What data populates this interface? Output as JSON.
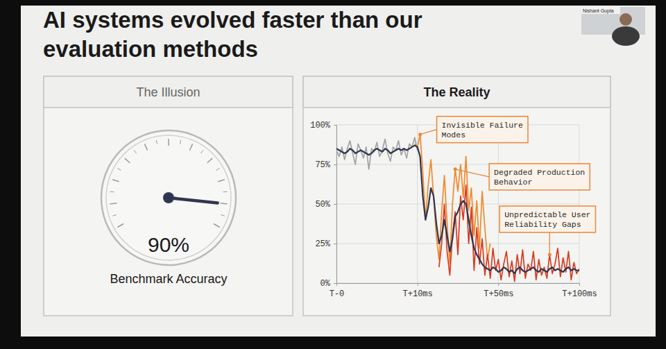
{
  "slide_title": "AI systems evolved faster than our evaluation methods",
  "speaker": "Nishant Gupta",
  "chart_data": [
    {
      "type": "gauge",
      "title": "The Illusion",
      "values": [
        90
      ],
      "value_labels": [
        "90%"
      ],
      "categories": [
        "Benchmark Accuracy"
      ],
      "ylim": [
        0,
        100
      ],
      "yticks": [
        0,
        5,
        10,
        15,
        20,
        25,
        30,
        35,
        40,
        45,
        50,
        55,
        60,
        65,
        70,
        75,
        80,
        85,
        90,
        95,
        100
      ],
      "tick_labels": false,
      "data_labels": true,
      "color": "#2f3650"
    },
    {
      "type": "line",
      "title": "The Reality",
      "x": [
        0,
        1,
        2,
        3,
        4,
        5,
        6,
        7,
        8,
        9,
        10,
        11,
        12,
        13,
        14,
        15,
        16,
        17,
        18,
        19,
        20,
        21,
        22,
        23,
        24,
        25,
        26,
        27,
        28,
        29,
        30,
        31,
        32,
        33,
        34,
        35,
        36,
        37,
        38,
        39,
        40,
        41,
        42,
        43,
        44,
        45,
        46,
        47,
        48,
        49,
        50,
        51,
        52,
        53,
        54,
        55,
        56,
        57,
        58,
        59,
        60,
        61,
        62,
        63,
        64,
        65,
        66,
        67,
        68,
        69,
        70,
        71,
        72,
        73,
        74,
        75,
        76,
        77,
        78,
        79,
        80,
        81,
        82,
        83,
        84,
        85,
        86,
        87,
        88,
        89,
        90
      ],
      "xlim": [
        0,
        90
      ],
      "xticks": [
        {
          "value": 0,
          "label": "T-0"
        },
        {
          "value": 30,
          "label": "T+10ms"
        },
        {
          "value": 60,
          "label": "T+50ms"
        },
        {
          "value": 90,
          "label": "T+100ms"
        }
      ],
      "ylim": [
        0,
        100
      ],
      "yticks": [
        {
          "value": 0,
          "label": "0%"
        },
        {
          "value": 25,
          "label": "25%"
        },
        {
          "value": 50,
          "label": "50%"
        },
        {
          "value": 75,
          "label": "75%"
        },
        {
          "value": 100,
          "label": "100%"
        }
      ],
      "grid": true,
      "series": [
        {
          "color": "#a3a3a3",
          "values": [
            84,
            80,
            86,
            78,
            85,
            90,
            82,
            75,
            88,
            84,
            79,
            86,
            72,
            85,
            83,
            89,
            80,
            84,
            91,
            82,
            77,
            86,
            84,
            90,
            81,
            85,
            79,
            88,
            86,
            92,
            84,
            null,
            null,
            null,
            null,
            null,
            null,
            null,
            null,
            null,
            null,
            null,
            null,
            null,
            null,
            null,
            null,
            null,
            null,
            null,
            null,
            null,
            null,
            null,
            null,
            null,
            null,
            null,
            null,
            null,
            null,
            null,
            null,
            null,
            null,
            null,
            null,
            null,
            null,
            null,
            null,
            null,
            null,
            null,
            null,
            null,
            null,
            null,
            null,
            null,
            null,
            null,
            null,
            null,
            null,
            null,
            null,
            null,
            null,
            null,
            null
          ]
        },
        {
          "color": "#f0892a",
          "values": [
            null,
            null,
            null,
            null,
            null,
            null,
            null,
            null,
            null,
            null,
            null,
            null,
            null,
            null,
            null,
            null,
            null,
            null,
            null,
            null,
            null,
            null,
            null,
            null,
            null,
            null,
            null,
            null,
            null,
            88,
            86,
            94,
            70,
            40,
            62,
            78,
            55,
            30,
            15,
            45,
            68,
            38,
            12,
            50,
            72,
            58,
            75,
            54,
            80,
            46,
            60,
            30,
            52,
            22,
            58,
            35,
            15,
            25,
            null,
            null,
            null,
            null,
            null,
            null,
            null,
            null,
            null,
            null,
            null,
            null,
            null,
            null,
            null,
            null,
            null,
            null,
            null,
            null,
            null,
            null,
            null,
            null,
            null,
            null,
            null,
            null,
            null,
            null,
            null,
            null,
            null
          ]
        },
        {
          "color": "#d93a1f",
          "values": [
            null,
            null,
            null,
            null,
            null,
            null,
            null,
            null,
            null,
            null,
            null,
            null,
            null,
            null,
            null,
            null,
            null,
            null,
            null,
            null,
            null,
            null,
            null,
            null,
            null,
            null,
            null,
            null,
            null,
            null,
            null,
            null,
            null,
            null,
            null,
            null,
            null,
            null,
            10,
            25,
            50,
            20,
            5,
            30,
            45,
            18,
            55,
            40,
            62,
            25,
            48,
            8,
            35,
            12,
            28,
            5,
            18,
            3,
            22,
            8,
            15,
            2,
            12,
            20,
            4,
            14,
            1,
            18,
            6,
            21,
            3,
            12,
            8,
            20,
            2,
            15,
            5,
            10,
            3,
            18,
            6,
            12,
            22,
            4,
            16,
            7,
            20,
            2,
            13,
            6,
            9
          ]
        },
        {
          "color": "#2f3650",
          "values": [
            85,
            84,
            83,
            82,
            83,
            85,
            84,
            82,
            83,
            84,
            83,
            82,
            81,
            82,
            84,
            85,
            84,
            83,
            85,
            84,
            82,
            83,
            84,
            85,
            84,
            85,
            84,
            85,
            86,
            87,
            86,
            80,
            55,
            40,
            48,
            60,
            55,
            38,
            25,
            30,
            40,
            30,
            20,
            28,
            42,
            45,
            50,
            52,
            50,
            40,
            30,
            22,
            18,
            15,
            12,
            10,
            9,
            8,
            10,
            9,
            7,
            8,
            10,
            9,
            7,
            8,
            6,
            9,
            10,
            8,
            7,
            8,
            9,
            10,
            8,
            7,
            9,
            8,
            7,
            9,
            10,
            8,
            9,
            8,
            7,
            9,
            10,
            8,
            9,
            8,
            8
          ]
        }
      ],
      "annotations": [
        {
          "text": "Invisible Failure Modes",
          "x": 31,
          "y": 94
        },
        {
          "text": "Degraded Production Behavior",
          "x": 44,
          "y": 72
        },
        {
          "text": "Unpredictable User Reliability Gaps",
          "x": 79,
          "y": 18
        }
      ]
    }
  ]
}
